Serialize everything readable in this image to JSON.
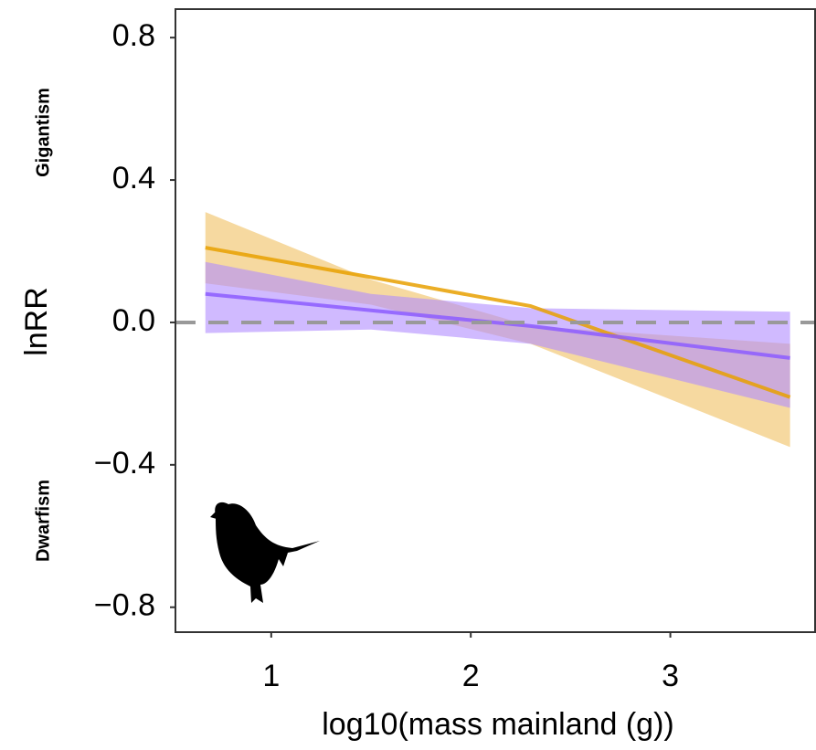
{
  "chart_data": {
    "type": "line",
    "ylabel": "lnRR",
    "xlabel": "log10(mass mainland (g))",
    "annotations": [
      "Gigantism",
      "Dwarfism"
    ],
    "x": [
      0.67,
      1.5,
      2.3,
      3.6
    ],
    "series": [
      {
        "color": "#e8a000",
        "band_color": "#f0c060",
        "values": [
          0.21,
          0.127,
          0.046,
          -0.21
        ],
        "upper": [
          0.31,
          0.12,
          -0.01,
          -0.06
        ],
        "lower": [
          0.11,
          0.05,
          -0.06,
          -0.35
        ]
      },
      {
        "color": "#8c5cff",
        "band_color": "#b08cff",
        "values": [
          0.08,
          0.034,
          -0.01,
          -0.1
        ],
        "upper": [
          0.17,
          0.08,
          0.04,
          0.03
        ],
        "lower": [
          -0.03,
          -0.02,
          -0.06,
          -0.24
        ]
      }
    ],
    "hline": 0,
    "xlim": [
      0.52,
      3.73
    ],
    "xticks": [
      1,
      2,
      3
    ],
    "ylim": [
      -0.87,
      0.88
    ],
    "yticks": [
      {
        "value": 0.8,
        "label": "0.8"
      },
      {
        "value": 0.4,
        "label": "0.4"
      },
      {
        "value": 0,
        "label": "0.0"
      },
      {
        "value": -0.4,
        "label": "−0.4"
      },
      {
        "value": -0.8,
        "label": "−0.8"
      }
    ]
  }
}
